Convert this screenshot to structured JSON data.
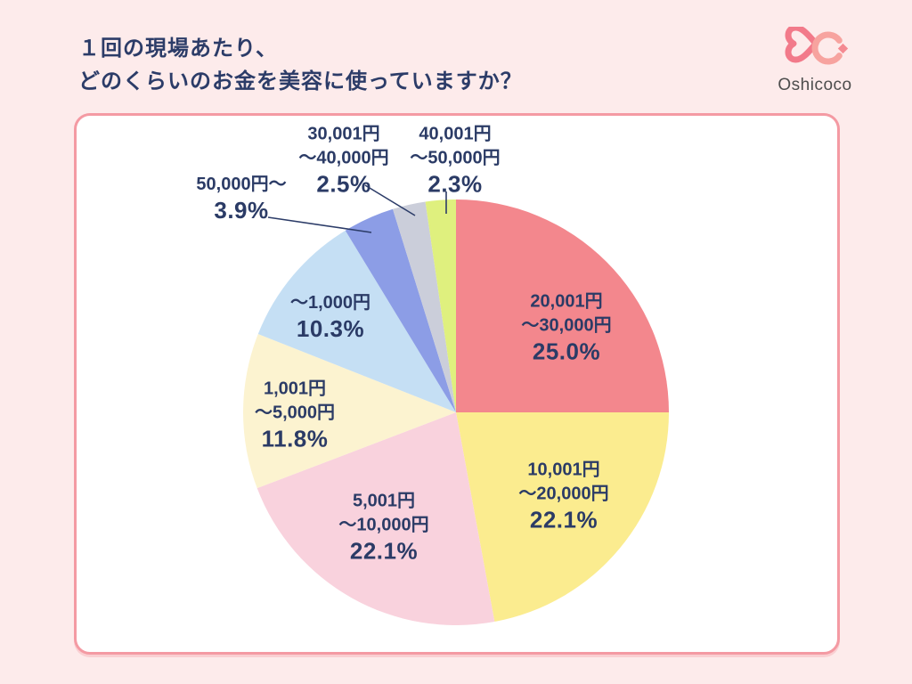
{
  "header": {
    "title_line1": "１回の現場あたり、",
    "title_line2": "どのくらいのお金を美容に使っていますか？",
    "brand": "Oshicoco"
  },
  "colors": {
    "page_background": "#FDEBEB",
    "card_background": "#FFFFFF",
    "card_border": "#F49AA3",
    "title_text": "#2C3C68",
    "label_text": "#2B3B66",
    "leader_line": "#2C3C68",
    "brand_pink_dark": "#F27A8A",
    "brand_pink_light": "#F7A39F"
  },
  "chart_data": {
    "type": "pie",
    "title": "１回の現場あたり、どのくらいのお金を美容に使っていますか？",
    "unit": "%",
    "start_angle_deg": 0,
    "direction": "clockwise",
    "legend_position": "none",
    "slices": [
      {
        "label": "20,001円～30,000円",
        "lines": [
          "20,001円",
          "～30,000円"
        ],
        "value": 25.0,
        "pct_label": "25.0%",
        "color": "#F3878D"
      },
      {
        "label": "10,001円～20,000円",
        "lines": [
          "10,001円",
          "～20,000円"
        ],
        "value": 22.1,
        "pct_label": "22.1%",
        "color": "#FBEC8F"
      },
      {
        "label": "5,001円～10,000円",
        "lines": [
          "5,001円",
          "～10,000円"
        ],
        "value": 22.1,
        "pct_label": "22.1%",
        "color": "#F9D2DD"
      },
      {
        "label": "1,001円～5,000円",
        "lines": [
          "1,001円",
          "～5,000円"
        ],
        "value": 11.8,
        "pct_label": "11.8%",
        "color": "#FCF3D0"
      },
      {
        "label": "～1,000円",
        "lines": [
          "～1,000円"
        ],
        "value": 10.3,
        "pct_label": "10.3%",
        "color": "#C5DFF4"
      },
      {
        "label": "50,000円～",
        "lines": [
          "50,000円～"
        ],
        "value": 3.9,
        "pct_label": "3.9%",
        "color": "#8C9DE6"
      },
      {
        "label": "30,001円～40,000円",
        "lines": [
          "30,001円",
          "～40,000円"
        ],
        "value": 2.5,
        "pct_label": "2.5%",
        "color": "#CBCEDA"
      },
      {
        "label": "40,001円～50,000円",
        "lines": [
          "40,001円",
          "～50,000円"
        ],
        "value": 2.3,
        "pct_label": "2.3%",
        "color": "#DFF07E"
      }
    ]
  }
}
